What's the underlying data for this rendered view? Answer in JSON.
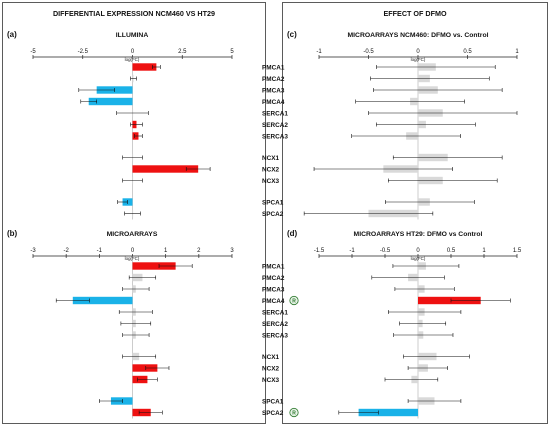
{
  "headers": {
    "left": "DIFFERENTIAL EXPRESSION NCM460 VS HT29",
    "right": "EFFECT OF DFMO"
  },
  "genes": [
    "PMCA1",
    "PMCA2",
    "PMCA3",
    "PMCA4",
    "SERCA1",
    "SERCA2",
    "SERCA3",
    "NCX1",
    "NCX2",
    "NCX3",
    "SPCA1",
    "SPCA2"
  ],
  "colors": {
    "up": "#ee1111",
    "down": "#1ab2e8",
    "ns": "#d9d9d9",
    "badge": "#2f7a2f"
  },
  "chart_data": [
    {
      "id": "a",
      "tag": "(a)",
      "type": "bar",
      "orientation": "horizontal",
      "title": "ILLUMINA",
      "xlabel": "log(FC)",
      "xlim": [
        -5,
        5
      ],
      "ticks": [
        -5,
        -2.5,
        0,
        2.5,
        5
      ],
      "tick_labels": [
        "-5",
        "-2.5",
        "0",
        "2.5",
        "5"
      ],
      "categories": [
        "PMCA1",
        "PMCA2",
        "PMCA3",
        "PMCA4",
        "SERCA1",
        "SERCA2",
        "SERCA3",
        "NCX1",
        "NCX2",
        "NCX3",
        "SPCA1",
        "SPCA2"
      ],
      "values": [
        1.2,
        0.05,
        -1.8,
        -2.2,
        0,
        0.2,
        0.3,
        0,
        3.3,
        0,
        -0.5,
        0
      ],
      "errors": [
        0.2,
        0.15,
        0.9,
        0.4,
        0.8,
        0.3,
        0.2,
        0.5,
        0.6,
        0.5,
        0.25,
        0.4
      ],
      "status": [
        "up",
        "ns",
        "down",
        "down",
        "ns",
        "up",
        "up",
        "ns",
        "up",
        "ns",
        "down",
        "ns"
      ],
      "badges": []
    },
    {
      "id": "b",
      "tag": "(b)",
      "type": "bar",
      "orientation": "horizontal",
      "title": "MICROARRAYS",
      "xlabel": "log(FC)",
      "xlim": [
        -3,
        3
      ],
      "ticks": [
        -3,
        -2,
        -1,
        0,
        1,
        2,
        3
      ],
      "tick_labels": [
        "-3",
        "-2",
        "-1",
        "0",
        "1",
        "2",
        "3"
      ],
      "categories": [
        "PMCA1",
        "PMCA2",
        "PMCA3",
        "PMCA4",
        "SERCA1",
        "SERCA2",
        "SERCA3",
        "NCX1",
        "NCX2",
        "NCX3",
        "SPCA1",
        "SPCA2"
      ],
      "values": [
        1.3,
        0.3,
        0.1,
        -1.8,
        0.1,
        0.1,
        0.1,
        0.2,
        0.75,
        0.45,
        -0.65,
        0.55
      ],
      "errors": [
        0.5,
        0.4,
        0.4,
        0.5,
        0.5,
        0.45,
        0.4,
        0.5,
        0.35,
        0.3,
        0.35,
        0.35
      ],
      "status": [
        "up",
        "ns",
        "ns",
        "down",
        "ns",
        "ns",
        "ns",
        "ns",
        "up",
        "up",
        "down",
        "up"
      ],
      "badges": []
    },
    {
      "id": "c",
      "tag": "(c)",
      "type": "bar",
      "orientation": "horizontal",
      "title": "MICROARRAYS NCM460: DFMO vs. Control",
      "xlabel": "log(FC)",
      "xlim": [
        -1,
        1
      ],
      "ticks": [
        -1,
        -0.5,
        0,
        0.5,
        1
      ],
      "tick_labels": [
        "-1",
        "-0.5",
        "0",
        "0.5",
        "1"
      ],
      "categories": [
        "PMCA1",
        "PMCA2",
        "PMCA3",
        "PMCA4",
        "SERCA1",
        "SERCA2",
        "SERCA3",
        "NCX1",
        "NCX2",
        "NCX3",
        "SPCA1",
        "SPCA2"
      ],
      "values": [
        0.18,
        0.12,
        0.2,
        -0.08,
        0.25,
        0.08,
        -0.12,
        0.3,
        -0.35,
        0.25,
        0.12,
        -0.5
      ],
      "errors": [
        0.6,
        0.6,
        0.65,
        0.55,
        0.75,
        0.5,
        0.55,
        0.55,
        0.7,
        0.55,
        0.45,
        0.65
      ],
      "status": [
        "ns",
        "ns",
        "ns",
        "ns",
        "ns",
        "ns",
        "ns",
        "ns",
        "ns",
        "ns",
        "ns",
        "ns"
      ],
      "badges": []
    },
    {
      "id": "d",
      "tag": "(d)",
      "type": "bar",
      "orientation": "horizontal",
      "title": "MICROARRAYS HT29: DFMO vs Control",
      "xlabel": "log(FC)",
      "xlim": [
        -1.5,
        1.5
      ],
      "ticks": [
        -1.5,
        -1,
        -0.5,
        0,
        0.5,
        1,
        1.5
      ],
      "tick_labels": [
        "-1.5",
        "-1",
        "-0.5",
        "0",
        "0.5",
        "1",
        "1.5"
      ],
      "categories": [
        "PMCA1",
        "PMCA2",
        "PMCA3",
        "PMCA4",
        "SERCA1",
        "SERCA2",
        "SERCA3",
        "NCX1",
        "NCX2",
        "NCX3",
        "SPCA1",
        "SPCA2"
      ],
      "values": [
        0.12,
        -0.15,
        0.1,
        0.95,
        0.1,
        0.07,
        0.08,
        0.28,
        0.15,
        -0.1,
        0.25,
        -0.9
      ],
      "errors": [
        0.5,
        0.55,
        0.45,
        0.45,
        0.55,
        0.35,
        0.45,
        0.5,
        0.3,
        0.4,
        0.4,
        0.3
      ],
      "status": [
        "ns",
        "ns",
        "ns",
        "up",
        "ns",
        "ns",
        "ns",
        "ns",
        "ns",
        "ns",
        "ns",
        "down"
      ],
      "badges": [
        {
          "gene": "PMCA4",
          "text": "R"
        },
        {
          "gene": "SPCA2",
          "text": "R"
        }
      ]
    }
  ]
}
